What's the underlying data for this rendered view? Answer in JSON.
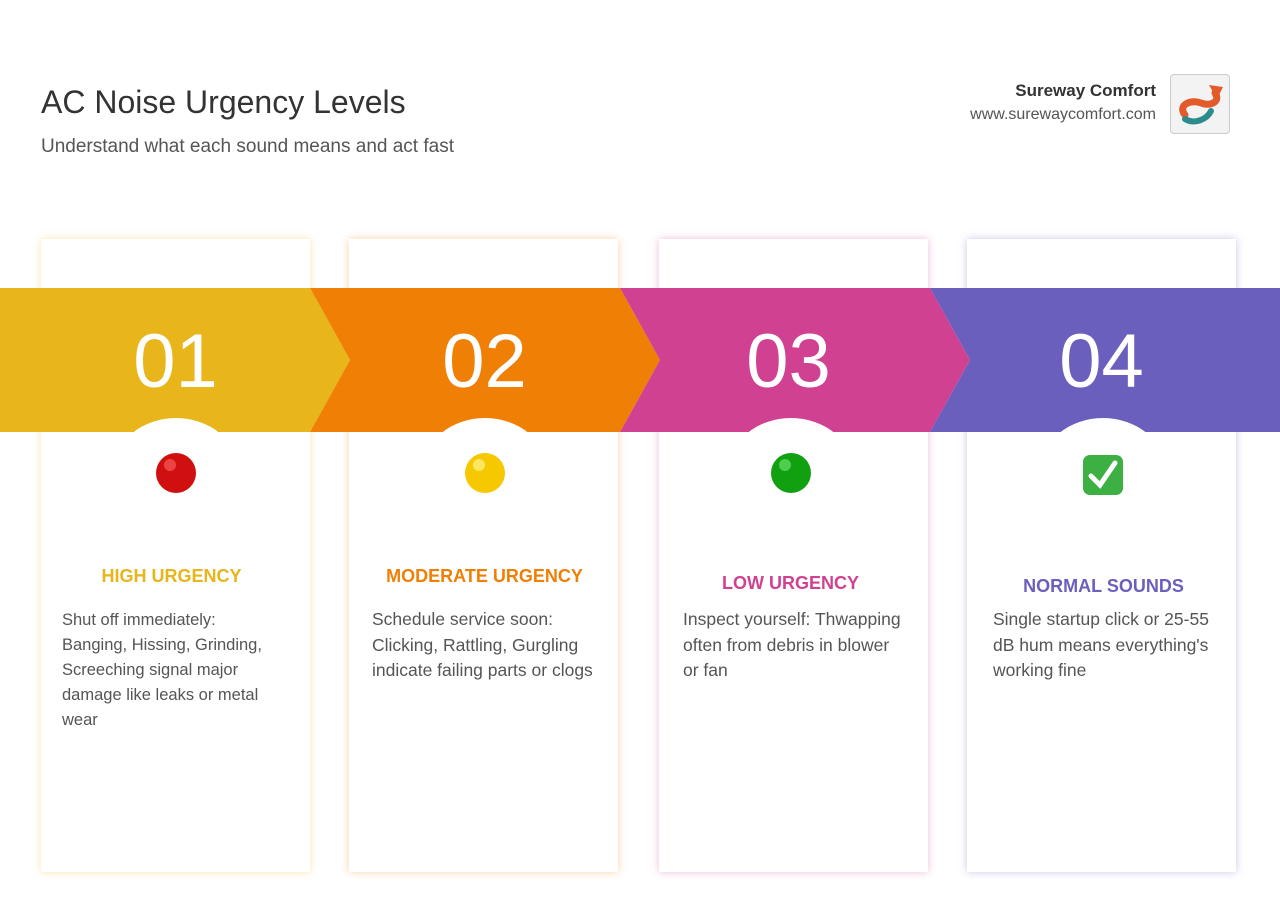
{
  "header": {
    "title": "AC Noise Urgency Levels",
    "subtitle": "Understand what each sound means and act fast",
    "brand": "Sureway Comfort",
    "url": "www.surewaycomfort.com"
  },
  "cards": [
    {
      "number": "01",
      "label": "HIGH URGENCY",
      "text": "Shut off immediately: Banging, Hissing, Grinding, Screeching signal major damage like leaks or metal wear"
    },
    {
      "number": "02",
      "label": "MODERATE URGENCY",
      "text": "Schedule service soon: Clicking, Rattling, Gurgling indicate failing parts or clogs"
    },
    {
      "number": "03",
      "label": "LOW URGENCY",
      "text": "Inspect yourself: Thwapping often from debris in blower or fan"
    },
    {
      "number": "04",
      "label": "NORMAL SOUNDS",
      "text": "Single startup click or 25-55 dB hum means everything's working fine"
    }
  ]
}
